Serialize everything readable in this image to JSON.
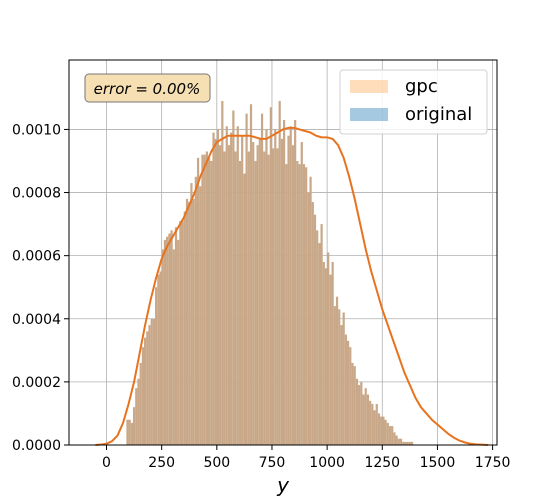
{
  "chart_data": {
    "type": "histogram",
    "xlabel": "y",
    "ylabel": "",
    "xlim": [
      -170,
      1770
    ],
    "ylim": [
      0,
      0.00122
    ],
    "xticks": [
      0,
      250,
      500,
      750,
      1000,
      1250,
      1500,
      1750
    ],
    "yticks": [
      0.0,
      0.0002,
      0.0004,
      0.0006,
      0.0008,
      0.001
    ],
    "xtick_labels": [
      "0",
      "250",
      "500",
      "750",
      "1000",
      "1250",
      "1500",
      "1750"
    ],
    "ytick_labels": [
      "0.0000",
      "0.0002",
      "0.0004",
      "0.0006",
      "0.0008",
      "0.0010"
    ],
    "grid": true,
    "legend_position": "top-right",
    "annotation": "error = 0.00%",
    "bin_start": 90,
    "bin_width": 10,
    "series": [
      {
        "name": "gpc",
        "color": "#ffbb78",
        "opacity": 0.5
      },
      {
        "name": "original",
        "color": "#1f77b4",
        "opacity": 0.4
      }
    ],
    "overlay_color": "#c8a888",
    "kde_color": "#e8731f",
    "values": [
      8e-05,
      8e-05,
      7e-05,
      0.00012,
      0.00018,
      0.00021,
      0.00026,
      0.00031,
      0.00034,
      0.00036,
      0.00038,
      0.0004,
      0.0004,
      0.0005,
      0.00054,
      0.00055,
      0.00062,
      0.00065,
      0.00066,
      0.00067,
      0.00068,
      0.00062,
      0.00069,
      0.00065,
      0.00071,
      0.00071,
      0.00074,
      0.00078,
      0.00077,
      0.00083,
      0.00078,
      0.00085,
      0.00091,
      0.00082,
      0.00092,
      0.00092,
      0.00093,
      0.00091,
      0.0009,
      0.00099,
      0.00097,
      0.001,
      0.00095,
      0.00109,
      0.00093,
      0.00101,
      0.00095,
      0.00099,
      0.00106,
      0.00093,
      0.00101,
      0.0009,
      0.00098,
      0.00086,
      0.00105,
      0.00093,
      0.00108,
      0.00096,
      0.0009,
      0.00095,
      0.00097,
      0.00105,
      0.00093,
      0.001,
      0.00092,
      0.00107,
      0.00094,
      0.001,
      0.00094,
      0.00109,
      0.00097,
      0.00103,
      0.00089,
      0.00098,
      0.00101,
      0.00095,
      0.00103,
      0.0009,
      0.00089,
      0.00096,
      0.00089,
      0.00088,
      0.0008,
      0.00085,
      0.00077,
      0.00073,
      0.00068,
      0.00064,
      0.0007,
      0.00058,
      0.00056,
      0.00061,
      0.00054,
      0.00058,
      0.00044,
      0.00047,
      0.00043,
      0.00038,
      0.00042,
      0.00035,
      0.00033,
      0.00031,
      0.00026,
      0.00025,
      0.00021,
      0.00019,
      0.0002,
      0.00016,
      0.00018,
      0.00016,
      0.00014,
      0.00013,
      0.00011,
      0.00013,
      0.0001,
      9e-05,
      9e-05,
      8e-05,
      7e-05,
      6e-05,
      6e-05,
      4e-05,
      3e-05,
      2e-05,
      2e-05,
      1e-05,
      1e-05,
      1e-05,
      1e-05,
      1e-05
    ],
    "kde_x": [
      -50,
      -20,
      0,
      25,
      50,
      75,
      100,
      125,
      150,
      175,
      200,
      225,
      250,
      275,
      300,
      325,
      350,
      375,
      400,
      425,
      450,
      475,
      500,
      525,
      550,
      575,
      600,
      625,
      650,
      675,
      700,
      725,
      750,
      775,
      800,
      825,
      850,
      875,
      900,
      925,
      950,
      975,
      1000,
      1025,
      1050,
      1075,
      1100,
      1125,
      1150,
      1175,
      1200,
      1225,
      1250,
      1275,
      1300,
      1325,
      1350,
      1375,
      1400,
      1425,
      1450,
      1475,
      1500,
      1525,
      1550,
      1575,
      1600,
      1625,
      1650,
      1675,
      1700,
      1730
    ],
    "kde_y": [
      0.0,
      2e-06,
      4e-06,
      1.2e-05,
      3e-05,
      7e-05,
      0.00013,
      0.0002,
      0.00029,
      0.00038,
      0.00046,
      0.00053,
      0.00059,
      0.00063,
      0.00066,
      0.00069,
      0.00072,
      0.00076,
      0.0008,
      0.00085,
      0.00089,
      0.00093,
      0.00096,
      0.00097,
      0.00098,
      0.00098,
      0.00098,
      0.00098,
      0.00098,
      0.000975,
      0.00097,
      0.00097,
      0.00098,
      0.00099,
      0.001,
      0.001005,
      0.001005,
      0.001,
      0.000995,
      0.00099,
      0.00098,
      0.000975,
      0.000975,
      0.00097,
      0.00095,
      0.00091,
      0.00085,
      0.00078,
      0.0007,
      0.00062,
      0.00055,
      0.00049,
      0.00043,
      0.00038,
      0.00033,
      0.00028,
      0.00023,
      0.00019,
      0.00015,
      0.00012,
      0.0001,
      8e-05,
      6.5e-05,
      5e-05,
      3.5e-05,
      2.3e-05,
      1.4e-05,
      8e-06,
      4e-06,
      2e-06,
      1e-06,
      0.0
    ]
  }
}
